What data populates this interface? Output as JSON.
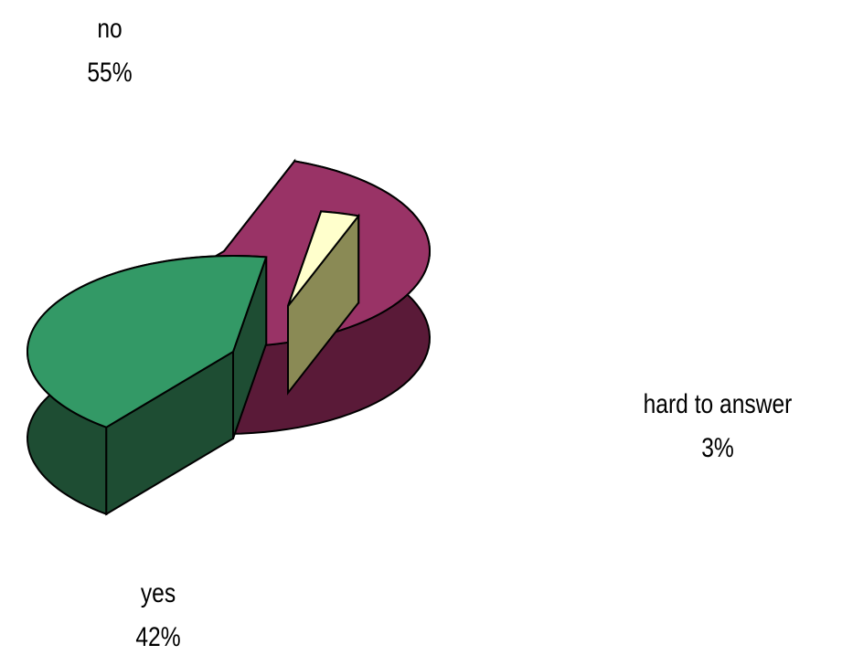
{
  "chart_data": {
    "type": "pie",
    "style": "3d-exploded",
    "slices": [
      {
        "label": "no",
        "value": 55,
        "value_label": "55%",
        "color": "#993366",
        "side_color": "#5a1a38"
      },
      {
        "label": "yes",
        "value": 42,
        "value_label": "42%",
        "color": "#339966",
        "side_color": "#1e4d33"
      },
      {
        "label": "hard to answer",
        "value": 3,
        "value_label": "3%",
        "color": "#ffffcc",
        "side_color": "#8a8a55"
      }
    ],
    "title": "",
    "legend": "none",
    "show_labels": true,
    "show_percent": true
  }
}
